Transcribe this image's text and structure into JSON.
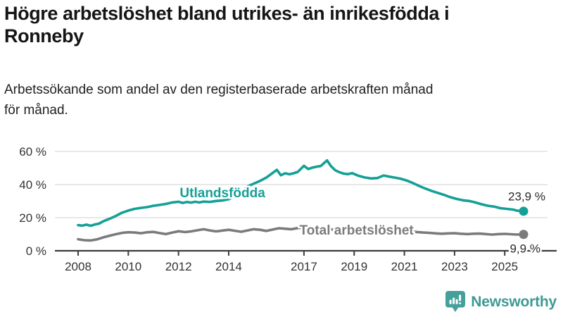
{
  "header": {
    "title_lines": [
      "Högre arbetslöshet bland utrikes- än inrikesfödda i",
      "Ronneby"
    ],
    "subtitle_lines": [
      "Arbetssökande som andel av den registerbaserade arbetskraften månad",
      "för månad."
    ]
  },
  "footer": {
    "brand": "Newsworthy",
    "logo_icon": "newsworthy-chart-bubble-icon",
    "logo_color": "#44A19A",
    "brand_text_color": "#3E9A94"
  },
  "colors": {
    "teal_series": "#14A096",
    "gray_series": "#7B7B7B",
    "axis_line": "#3C3C3C",
    "gridline": "#D9D9D9",
    "axis_text": "#333333",
    "value_label_text": "#2A2A2A"
  },
  "chart_data": {
    "type": "line",
    "title": "Högre arbetslöshet bland utrikes- än inrikesfödda i Ronneby",
    "subtitle": "Arbetssökande som andel av den registerbaserade arbetskraften månad för månad.",
    "unit": "%",
    "ylim": [
      0,
      60
    ],
    "xlim": [
      2008.0,
      2025.75
    ],
    "grid": "horizontal",
    "legend": "inline-labels",
    "y_ticks": [
      {
        "value": 0,
        "label": "0 %"
      },
      {
        "value": 20,
        "label": "20 %"
      },
      {
        "value": 40,
        "label": "40 %"
      },
      {
        "value": 60,
        "label": "60 %"
      }
    ],
    "x_ticks": [
      {
        "value": 2008,
        "label": "2008"
      },
      {
        "value": 2010,
        "label": "2010"
      },
      {
        "value": 2012,
        "label": "2012"
      },
      {
        "value": 2014,
        "label": "2014"
      },
      {
        "value": 2017,
        "label": "2017"
      },
      {
        "value": 2019,
        "label": "2019"
      },
      {
        "value": 2021,
        "label": "2021"
      },
      {
        "value": 2023,
        "label": "2023"
      },
      {
        "value": 2025,
        "label": "2025"
      }
    ],
    "series": [
      {
        "id": "utlandsfodda",
        "name": "Utlandsfödda",
        "color": "#14A096",
        "end_value": 23.9,
        "end_label": "23,9 %",
        "inline_label": {
          "text": "Utlandsfödda",
          "t": 2012.05,
          "v": 32.3
        },
        "points": [
          [
            2008.0,
            15.5
          ],
          [
            2008.17,
            15.2
          ],
          [
            2008.33,
            15.8
          ],
          [
            2008.5,
            15.1
          ],
          [
            2008.67,
            15.9
          ],
          [
            2008.83,
            16.4
          ],
          [
            2009.0,
            17.8
          ],
          [
            2009.25,
            19.3
          ],
          [
            2009.5,
            21.0
          ],
          [
            2009.75,
            23.0
          ],
          [
            2010.0,
            24.3
          ],
          [
            2010.25,
            25.3
          ],
          [
            2010.5,
            25.9
          ],
          [
            2010.75,
            26.4
          ],
          [
            2011.0,
            27.2
          ],
          [
            2011.25,
            27.7
          ],
          [
            2011.5,
            28.3
          ],
          [
            2011.75,
            29.2
          ],
          [
            2012.0,
            29.6
          ],
          [
            2012.17,
            28.9
          ],
          [
            2012.33,
            29.5
          ],
          [
            2012.5,
            29.1
          ],
          [
            2012.67,
            29.6
          ],
          [
            2012.83,
            29.2
          ],
          [
            2013.0,
            29.7
          ],
          [
            2013.25,
            29.5
          ],
          [
            2013.5,
            30.1
          ],
          [
            2013.75,
            30.4
          ],
          [
            2014.0,
            31.2
          ],
          [
            2014.25,
            32.8
          ],
          [
            2014.5,
            35.0
          ],
          [
            2014.75,
            38.8
          ],
          [
            2015.0,
            40.6
          ],
          [
            2015.25,
            42.2
          ],
          [
            2015.5,
            44.2
          ],
          [
            2015.75,
            47.0
          ],
          [
            2015.92,
            48.9
          ],
          [
            2016.08,
            45.6
          ],
          [
            2016.25,
            46.8
          ],
          [
            2016.42,
            46.2
          ],
          [
            2016.58,
            46.8
          ],
          [
            2016.75,
            47.6
          ],
          [
            2017.0,
            51.3
          ],
          [
            2017.17,
            49.4
          ],
          [
            2017.33,
            50.2
          ],
          [
            2017.5,
            50.8
          ],
          [
            2017.67,
            51.2
          ],
          [
            2017.92,
            54.6
          ],
          [
            2018.08,
            51.0
          ],
          [
            2018.25,
            48.6
          ],
          [
            2018.42,
            47.4
          ],
          [
            2018.58,
            46.6
          ],
          [
            2018.75,
            46.3
          ],
          [
            2018.92,
            46.9
          ],
          [
            2019.17,
            45.3
          ],
          [
            2019.42,
            44.3
          ],
          [
            2019.67,
            43.7
          ],
          [
            2019.92,
            43.9
          ],
          [
            2020.17,
            45.5
          ],
          [
            2020.33,
            45.0
          ],
          [
            2020.58,
            44.3
          ],
          [
            2020.83,
            43.6
          ],
          [
            2021.08,
            42.5
          ],
          [
            2021.33,
            41.0
          ],
          [
            2021.58,
            39.2
          ],
          [
            2021.83,
            37.6
          ],
          [
            2022.08,
            36.2
          ],
          [
            2022.33,
            35.0
          ],
          [
            2022.58,
            33.8
          ],
          [
            2022.83,
            32.4
          ],
          [
            2023.08,
            31.3
          ],
          [
            2023.33,
            30.5
          ],
          [
            2023.58,
            30.1
          ],
          [
            2023.83,
            29.2
          ],
          [
            2024.08,
            28.1
          ],
          [
            2024.33,
            27.2
          ],
          [
            2024.58,
            26.7
          ],
          [
            2024.83,
            25.7
          ],
          [
            2025.08,
            25.3
          ],
          [
            2025.33,
            24.9
          ],
          [
            2025.5,
            24.2
          ],
          [
            2025.75,
            23.9
          ]
        ]
      },
      {
        "id": "total",
        "name": "Total arbetslöshet",
        "color": "#7B7B7B",
        "end_value": 9.9,
        "end_label": "9,9 %",
        "inline_label": {
          "text": "Total arbetslöshet",
          "t": 2016.82,
          "v": 9.8
        },
        "points": [
          [
            2008.0,
            7.0
          ],
          [
            2008.25,
            6.4
          ],
          [
            2008.5,
            6.2
          ],
          [
            2008.75,
            6.9
          ],
          [
            2009.0,
            8.1
          ],
          [
            2009.25,
            9.1
          ],
          [
            2009.5,
            10.0
          ],
          [
            2009.75,
            10.8
          ],
          [
            2010.0,
            11.2
          ],
          [
            2010.25,
            11.0
          ],
          [
            2010.5,
            10.6
          ],
          [
            2010.75,
            11.2
          ],
          [
            2011.0,
            11.4
          ],
          [
            2011.25,
            10.7
          ],
          [
            2011.5,
            10.1
          ],
          [
            2011.75,
            11.0
          ],
          [
            2012.0,
            11.8
          ],
          [
            2012.25,
            11.3
          ],
          [
            2012.5,
            11.7
          ],
          [
            2012.75,
            12.4
          ],
          [
            2013.0,
            13.0
          ],
          [
            2013.25,
            12.3
          ],
          [
            2013.5,
            11.7
          ],
          [
            2013.75,
            12.2
          ],
          [
            2014.0,
            12.7
          ],
          [
            2014.25,
            12.1
          ],
          [
            2014.5,
            11.5
          ],
          [
            2014.75,
            12.3
          ],
          [
            2015.0,
            13.0
          ],
          [
            2015.25,
            12.7
          ],
          [
            2015.5,
            12.0
          ],
          [
            2015.75,
            12.8
          ],
          [
            2016.0,
            13.6
          ],
          [
            2016.25,
            13.3
          ],
          [
            2016.5,
            13.0
          ],
          [
            2016.75,
            13.7
          ],
          [
            2017.0,
            14.1
          ],
          [
            2017.25,
            13.7
          ],
          [
            2017.5,
            13.1
          ],
          [
            2017.75,
            13.4
          ],
          [
            2018.0,
            13.1
          ],
          [
            2018.25,
            12.6
          ],
          [
            2018.5,
            12.1
          ],
          [
            2018.75,
            12.3
          ],
          [
            2019.0,
            12.5
          ],
          [
            2019.25,
            12.1
          ],
          [
            2019.5,
            11.9
          ],
          [
            2019.75,
            12.1
          ],
          [
            2020.0,
            12.5
          ],
          [
            2020.25,
            13.3
          ],
          [
            2020.5,
            12.9
          ],
          [
            2020.75,
            12.5
          ],
          [
            2021.0,
            12.2
          ],
          [
            2021.25,
            11.8
          ],
          [
            2021.5,
            11.3
          ],
          [
            2021.75,
            11.0
          ],
          [
            2022.0,
            10.8
          ],
          [
            2022.25,
            10.5
          ],
          [
            2022.5,
            10.3
          ],
          [
            2022.75,
            10.5
          ],
          [
            2023.0,
            10.6
          ],
          [
            2023.25,
            10.3
          ],
          [
            2023.5,
            10.1
          ],
          [
            2023.75,
            10.3
          ],
          [
            2024.0,
            10.4
          ],
          [
            2024.25,
            10.1
          ],
          [
            2024.5,
            9.8
          ],
          [
            2024.75,
            10.1
          ],
          [
            2025.0,
            10.2
          ],
          [
            2025.25,
            10.0
          ],
          [
            2025.5,
            9.8
          ],
          [
            2025.75,
            9.9
          ]
        ]
      }
    ]
  }
}
